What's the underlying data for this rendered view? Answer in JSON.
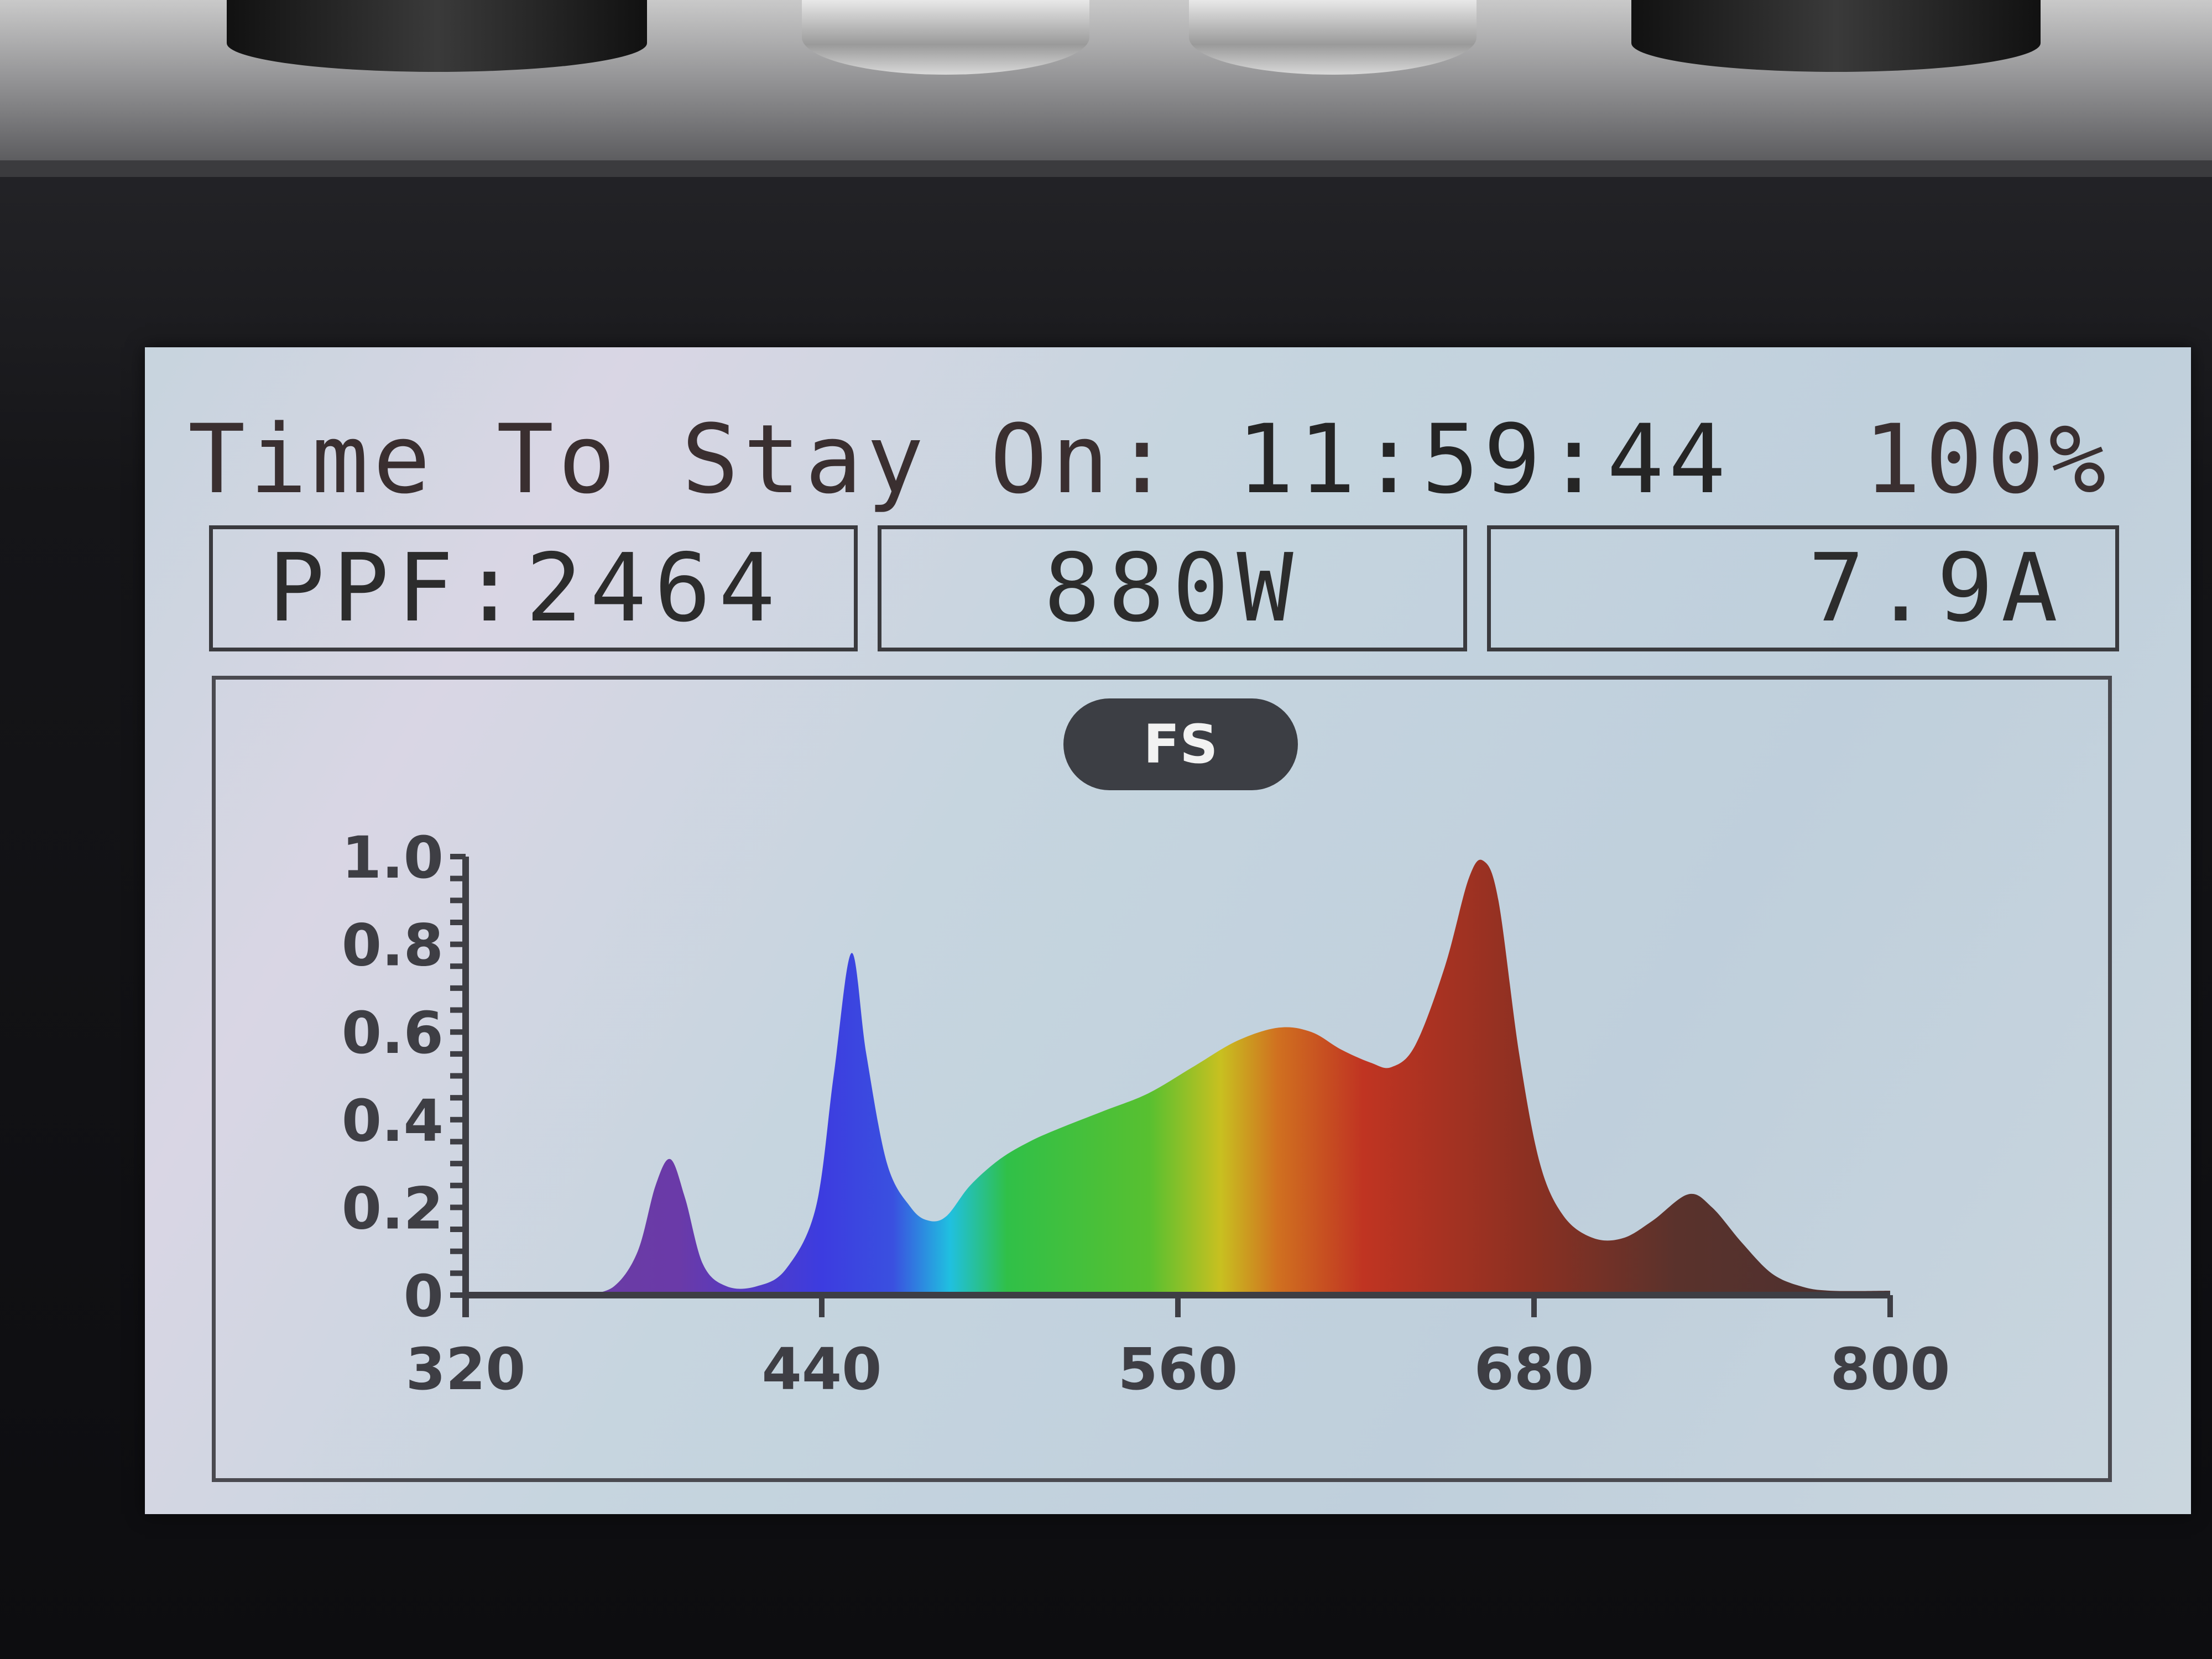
{
  "header": {
    "label": "Time To Stay On:",
    "time_remaining": "11:59:44",
    "brightness": "100%"
  },
  "stats": {
    "ppf": "PPF:2464",
    "power": "880W",
    "current": "7.9A"
  },
  "mode_badge": "FS",
  "colors": {
    "axis": "#3e3e44",
    "screen_bg": "#c7d4de",
    "badge_bg": "#3c3e44"
  },
  "chart_data": {
    "type": "area",
    "title": "",
    "xlabel": "",
    "ylabel": "",
    "xlim": [
      320,
      800
    ],
    "ylim": [
      0,
      1.0
    ],
    "x_ticks": [
      "320",
      "440",
      "560",
      "680",
      "800"
    ],
    "y_ticks": [
      "0",
      "0.2",
      "0.4",
      "0.6",
      "0.8",
      "1.0"
    ],
    "grid": false,
    "fill": "wavelength-colored spectrum gradient",
    "points": [
      [
        360,
        0
      ],
      [
        370,
        0.02
      ],
      [
        378,
        0.1
      ],
      [
        384,
        0.25
      ],
      [
        389,
        0.31
      ],
      [
        394,
        0.22
      ],
      [
        400,
        0.07
      ],
      [
        408,
        0.02
      ],
      [
        418,
        0.02
      ],
      [
        428,
        0.06
      ],
      [
        438,
        0.2
      ],
      [
        444,
        0.5
      ],
      [
        450,
        0.78
      ],
      [
        455,
        0.55
      ],
      [
        462,
        0.3
      ],
      [
        470,
        0.2
      ],
      [
        476,
        0.17
      ],
      [
        482,
        0.18
      ],
      [
        490,
        0.25
      ],
      [
        500,
        0.31
      ],
      [
        510,
        0.35
      ],
      [
        520,
        0.38
      ],
      [
        535,
        0.42
      ],
      [
        550,
        0.46
      ],
      [
        565,
        0.52
      ],
      [
        580,
        0.58
      ],
      [
        594,
        0.61
      ],
      [
        605,
        0.6
      ],
      [
        615,
        0.56
      ],
      [
        625,
        0.53
      ],
      [
        632,
        0.52
      ],
      [
        640,
        0.57
      ],
      [
        650,
        0.75
      ],
      [
        658,
        0.95
      ],
      [
        663,
        0.99
      ],
      [
        668,
        0.9
      ],
      [
        675,
        0.55
      ],
      [
        682,
        0.3
      ],
      [
        690,
        0.18
      ],
      [
        700,
        0.13
      ],
      [
        710,
        0.13
      ],
      [
        720,
        0.17
      ],
      [
        732,
        0.23
      ],
      [
        740,
        0.2
      ],
      [
        750,
        0.12
      ],
      [
        760,
        0.05
      ],
      [
        770,
        0.02
      ],
      [
        780,
        0.01
      ],
      [
        800,
        0.01
      ]
    ]
  }
}
